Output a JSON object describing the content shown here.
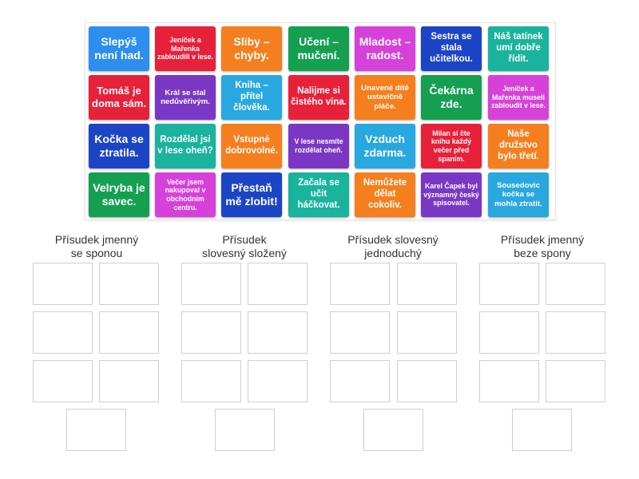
{
  "colors": {
    "blue": "#2e8ef0",
    "red": "#e8213a",
    "orange": "#f57f1e",
    "green": "#14a050",
    "pink": "#d642d9",
    "navy": "#1c45c6",
    "teal": "#1ab39e",
    "purple": "#7a37c4",
    "sky": "#29a8e0"
  },
  "cards": [
    {
      "text": "Slepýš není had.",
      "color": "#2e8ef0"
    },
    {
      "text": "Jeníček a Mařenka zabloudili v lese.",
      "color": "#e8213a"
    },
    {
      "text": "Sliby – chyby.",
      "color": "#f57f1e"
    },
    {
      "text": "Učení – mučení.",
      "color": "#14a050"
    },
    {
      "text": "Mladost – radost.",
      "color": "#d642d9"
    },
    {
      "text": "Sestra se stala učitelkou.",
      "color": "#1c45c6"
    },
    {
      "text": "Náš tatínek umí dobře řídit.",
      "color": "#1ab39e"
    },
    {
      "text": "Tomáš je doma sám.",
      "color": "#e8213a"
    },
    {
      "text": "Král se stal nedůvěřivým.",
      "color": "#7a37c4"
    },
    {
      "text": "Kniha – přítel člověka.",
      "color": "#29a8e0"
    },
    {
      "text": "Nalijme si čistého vína.",
      "color": "#e8213a"
    },
    {
      "text": "Unavené dítě ustavičně pláče.",
      "color": "#f57f1e"
    },
    {
      "text": "Čekárna zde.",
      "color": "#14a050"
    },
    {
      "text": "Jeníček a Mařenka museli zabloudit v lese.",
      "color": "#d642d9"
    },
    {
      "text": "Kočka se ztratila.",
      "color": "#1c45c6"
    },
    {
      "text": "Rozdělal jsi v lese oheň?",
      "color": "#1ab39e"
    },
    {
      "text": "Vstupné dobrovolné.",
      "color": "#f57f1e"
    },
    {
      "text": "V lese nesmíte rozdělat oheň.",
      "color": "#7a37c4"
    },
    {
      "text": "Vzduch zdarma.",
      "color": "#29a8e0"
    },
    {
      "text": "Milan si čte knihu každý večer před spaním.",
      "color": "#e8213a"
    },
    {
      "text": "Naše družstvo bylo třetí.",
      "color": "#f57f1e"
    },
    {
      "text": "Velryba je savec.",
      "color": "#14a050"
    },
    {
      "text": "Večer jsem nakupoval v obchodním centru.",
      "color": "#d642d9"
    },
    {
      "text": "Přestaň mě zlobit!",
      "color": "#1c45c6"
    },
    {
      "text": "Začala se učit háčkovat.",
      "color": "#1ab39e"
    },
    {
      "text": "Nemůžete dělat cokoliv.",
      "color": "#f57f1e"
    },
    {
      "text": "Karel Čapek byl významný český spisovatel.",
      "color": "#7a37c4"
    },
    {
      "text": "Sousedovic kočka se mohla ztratit.",
      "color": "#29a8e0"
    }
  ],
  "groups": [
    {
      "title_line1": "Přísudek jmenný",
      "title_line2": "se sponou"
    },
    {
      "title_line1": "Přísudek",
      "title_line2": "slovesný složený"
    },
    {
      "title_line1": "Přísudek slovesný",
      "title_line2": "jednoduchý"
    },
    {
      "title_line1": "Přísudek jmenný",
      "title_line2": "beze spony"
    }
  ]
}
